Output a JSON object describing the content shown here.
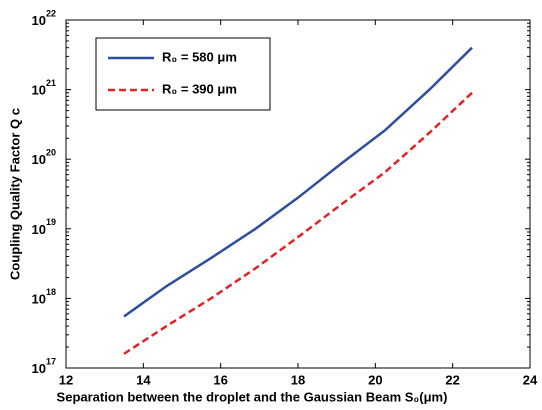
{
  "chart_data": {
    "type": "line",
    "xlabel": "Separation between the droplet and the Gaussian Beam S₀(μm)",
    "ylabel": "Coupling Quality Factor Q c",
    "x": [
      13.5,
      14.6,
      15.75,
      16.9,
      18,
      19.1,
      20.25,
      21.4,
      22.5
    ],
    "series": [
      {
        "name": "R₀ = 580 μm",
        "color": "#2e4e9e",
        "dash": false,
        "values": [
          5.5e+17,
          1.5e+18,
          3.8e+18,
          1e+19,
          2.8e+19,
          8.5e+19,
          2.6e+20,
          1e+21,
          4e+21
        ]
      },
      {
        "name": "R₀ = 390 μm",
        "color": "#e32227",
        "dash": true,
        "values": [
          1.6e+17,
          4e+17,
          1e+18,
          2.7e+18,
          7.6e+18,
          2.2e+19,
          6.5e+19,
          2.4e+20,
          9e+20
        ]
      }
    ],
    "xlim": [
      12,
      24
    ],
    "xticks": [
      12,
      14,
      16,
      18,
      20,
      22,
      24
    ],
    "ylim": [
      1e+17,
      1e+22
    ],
    "log_y": true,
    "yticks": [
      {
        "value": 1e+17,
        "label": "10",
        "exponent": "17"
      },
      {
        "value": 1e+18,
        "label": "10",
        "exponent": "18"
      },
      {
        "value": 1e+19,
        "label": "10",
        "exponent": "19"
      },
      {
        "value": 1e+20,
        "label": "10",
        "exponent": "20"
      },
      {
        "value": 1e+21,
        "label": "10",
        "exponent": "21"
      },
      {
        "value": 1e+22,
        "label": "10",
        "exponent": "22"
      }
    ],
    "grid": false,
    "legend": "upper left"
  }
}
